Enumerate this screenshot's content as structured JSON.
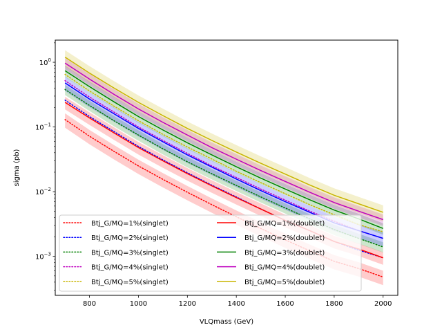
{
  "chart_data": {
    "type": "line",
    "title": "",
    "xlabel": "VLQmass (GeV)",
    "ylabel": "sigma (pb)",
    "xlim": [
      660,
      2060
    ],
    "ylim": [
      0.00025,
      2.2
    ],
    "yscale": "log",
    "x_ticks": [
      800,
      1000,
      1200,
      1400,
      1600,
      1800,
      2000
    ],
    "y_ticks": [
      {
        "value": 0.001,
        "base": "10",
        "exp": "−3"
      },
      {
        "value": 0.01,
        "base": "10",
        "exp": "−2"
      },
      {
        "value": 0.1,
        "base": "10",
        "exp": "−1"
      },
      {
        "value": 1,
        "base": "10",
        "exp": "0"
      }
    ],
    "grid": false,
    "legend_location": "lower left",
    "legend_columns": 2,
    "x": [
      700,
      800,
      900,
      1000,
      1100,
      1200,
      1300,
      1400,
      1500,
      1600,
      1700,
      1800,
      1900,
      2000
    ],
    "series": [
      {
        "name": "Btj_G/MQ=1%(singlet)",
        "color": "#ff0000",
        "style": "dotted",
        "band": true,
        "band_rel": 0.25,
        "values": [
          0.13,
          0.072,
          0.042,
          0.025,
          0.0155,
          0.0098,
          0.0063,
          0.0041,
          0.0027,
          0.0018,
          0.00122,
          0.00084,
          0.00065,
          0.00048
        ]
      },
      {
        "name": "Btj_G/MQ=2%(singlet)",
        "color": "#0000ff",
        "style": "dotted",
        "band": false,
        "values": [
          0.26,
          0.145,
          0.085,
          0.05,
          0.031,
          0.0196,
          0.0126,
          0.0083,
          0.0054,
          0.0036,
          0.0025,
          0.0017,
          0.00125,
          0.00095
        ]
      },
      {
        "name": "Btj_G/MQ=3%(singlet)",
        "color": "#008000",
        "style": "dotted",
        "band": true,
        "band_rel": 0.18,
        "values": [
          0.38,
          0.215,
          0.125,
          0.075,
          0.046,
          0.029,
          0.0189,
          0.0125,
          0.0083,
          0.0056,
          0.0038,
          0.0026,
          0.0019,
          0.0014
        ]
      },
      {
        "name": "Btj_G/MQ=4%(singlet)",
        "color": "#bf00bf",
        "style": "dotted",
        "band": false,
        "values": [
          0.52,
          0.29,
          0.17,
          0.1,
          0.062,
          0.039,
          0.025,
          0.0166,
          0.011,
          0.0074,
          0.005,
          0.0035,
          0.0025,
          0.0019
        ]
      },
      {
        "name": "Btj_G/MQ=5%(singlet)",
        "color": "#c8b400",
        "style": "dotted",
        "band": false,
        "values": [
          0.65,
          0.36,
          0.21,
          0.125,
          0.077,
          0.049,
          0.032,
          0.0207,
          0.0138,
          0.0093,
          0.0063,
          0.0044,
          0.0031,
          0.0024
        ]
      },
      {
        "name": "Btj_G/MQ=1%(doublet)",
        "color": "#ff0000",
        "style": "solid",
        "band": true,
        "band_rel": 0.22,
        "values": [
          0.24,
          0.138,
          0.081,
          0.048,
          0.03,
          0.019,
          0.0123,
          0.0081,
          0.0054,
          0.0036,
          0.0025,
          0.0017,
          0.0013,
          0.00095
        ]
      },
      {
        "name": "Btj_G/MQ=2%(doublet)",
        "color": "#0000ff",
        "style": "solid",
        "band": true,
        "band_rel": 0.25,
        "values": [
          0.48,
          0.27,
          0.16,
          0.095,
          0.059,
          0.037,
          0.024,
          0.0157,
          0.0104,
          0.007,
          0.0048,
          0.0033,
          0.0025,
          0.0019
        ]
      },
      {
        "name": "Btj_G/MQ=3%(doublet)",
        "color": "#008000",
        "style": "solid",
        "band": true,
        "band_rel": 0.2,
        "values": [
          0.74,
          0.42,
          0.245,
          0.145,
          0.09,
          0.057,
          0.037,
          0.0243,
          0.0162,
          0.011,
          0.0075,
          0.0052,
          0.0038,
          0.0027
        ]
      },
      {
        "name": "Btj_G/MQ=4%(doublet)",
        "color": "#bf00bf",
        "style": "solid",
        "band": true,
        "band_rel": 0.2,
        "values": [
          0.97,
          0.55,
          0.32,
          0.19,
          0.118,
          0.075,
          0.048,
          0.0318,
          0.0212,
          0.0144,
          0.0098,
          0.0068,
          0.005,
          0.0037
        ]
      },
      {
        "name": "Btj_G/MQ=5%(doublet)",
        "color": "#c8b400",
        "style": "solid",
        "band": true,
        "band_rel": 0.28,
        "values": [
          1.2,
          0.68,
          0.4,
          0.24,
          0.15,
          0.095,
          0.062,
          0.041,
          0.0275,
          0.0187,
          0.0127,
          0.0088,
          0.0065,
          0.0048
        ]
      }
    ]
  }
}
